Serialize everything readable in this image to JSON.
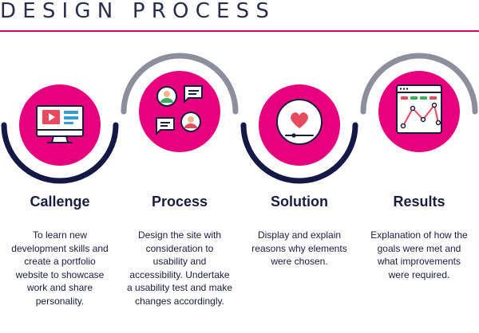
{
  "header": {
    "title": "DESIGN PROCESS"
  },
  "colors": {
    "accent": "#e6007e",
    "arc_dark": "#131845",
    "arc_gray": "#8c8e9b",
    "text": "#1b1d3f",
    "rule": "#d4006b"
  },
  "steps": [
    {
      "title": "Callenge",
      "icon": "video-monitor-icon",
      "arc": "bottom",
      "description": "To learn new\ndevelopment skills and\ncreate a portfolio\nwebsite to showcase\nwork and share\npersonality."
    },
    {
      "title": "Process",
      "icon": "user-chat-icon",
      "arc": "top",
      "description": "Design the site with\nconsideration to\nusability  and\naccessibility. Undertake\na usability test and make\nchanges accordingly."
    },
    {
      "title": "Solution",
      "icon": "heart-slider-icon",
      "arc": "bottom",
      "description": "Display and explain\nreasons why  elements\nwere chosen."
    },
    {
      "title": "Results",
      "icon": "analytics-chart-icon",
      "arc": "top",
      "description": "Explanation of how the\ngoals were met and\nwhat improvements\nwere required."
    }
  ]
}
